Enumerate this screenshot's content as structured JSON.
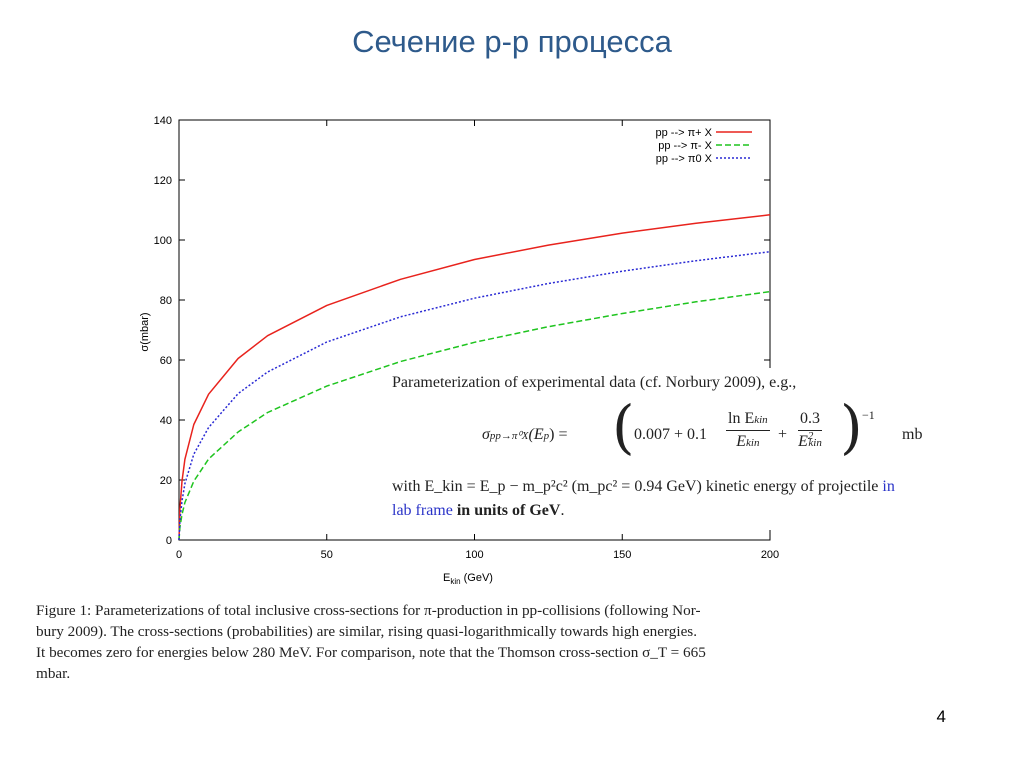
{
  "slide": {
    "title": "Сечение p-p процесса",
    "page_number": "4"
  },
  "chart_data": {
    "type": "line",
    "xlabel": "E",
    "xlabel_sub": "kin",
    "xlabel_unit": " (GeV)",
    "ylabel": "σ(mbar)",
    "xlim": [
      0,
      200
    ],
    "ylim": [
      0,
      140
    ],
    "x_ticks": [
      0,
      50,
      100,
      150,
      200
    ],
    "y_ticks": [
      0,
      20,
      40,
      60,
      80,
      100,
      120,
      140
    ],
    "legend_position": "top-right",
    "grid": false,
    "series": [
      {
        "name": "pp --> π+ X",
        "color": "#e8231d",
        "dash": "solid",
        "x": [
          0.3,
          1,
          2,
          5,
          10,
          20,
          30,
          50,
          75,
          100,
          125,
          150,
          175,
          200
        ],
        "y": [
          10.3,
          19.6,
          26.9,
          38.5,
          48.6,
          60.5,
          68.1,
          78.2,
          86.9,
          93.5,
          98.3,
          102.3,
          105.6,
          108.4
        ]
      },
      {
        "name": "pp --> π- X",
        "color": "#1fc41f",
        "dash": "dashed",
        "x": [
          0.3,
          1,
          2,
          5,
          10,
          20,
          30,
          50,
          75,
          100,
          125,
          150,
          175,
          200
        ],
        "y": [
          4.2,
          8.5,
          12.5,
          19.6,
          27.0,
          36.0,
          42.5,
          51.3,
          59.5,
          65.9,
          71.1,
          75.5,
          79.4,
          82.8
        ]
      },
      {
        "name": "pp --> π0 X",
        "color": "#2a2ad4",
        "dash": "dotted",
        "x": [
          0.3,
          1,
          2,
          5,
          10,
          20,
          30,
          50,
          75,
          100,
          125,
          150,
          175,
          200
        ],
        "y": [
          6.5,
          13.0,
          18.8,
          28.6,
          37.5,
          48.8,
          56.0,
          66.0,
          74.4,
          80.6,
          85.5,
          89.6,
          93.1,
          96.1
        ]
      }
    ]
  },
  "formula": {
    "line1": "Parameterization of experimental data (cf. Norbury 2009), e.g.,",
    "sigma": "σ",
    "sigma_sub": "pp→π⁰X",
    "lhs_arg": "(E",
    "lhs_arg_sub": "p",
    "lhs_close": ") =",
    "const1": "0.007 + 0.1",
    "frac1_num": "ln E",
    "frac1_num_sub": "kin",
    "frac1_den": "E",
    "frac1_den_sub": "kin",
    "plus": "+",
    "frac2_num": "0.3",
    "frac2_den": "E",
    "frac2_den_sup": "2",
    "frac2_den_sub": "kin",
    "exponent": "−1",
    "unit": "mb",
    "line3": "with E_kin = E_p − m_p²c² (m_pc² = 0.94 GeV) kinetic energy of projectile",
    "line3_in": "in",
    "line4_blue": "lab frame",
    "line4_bold": "in units of GeV",
    "line4_end": "."
  },
  "caption": {
    "line1": "Figure 1:  Parameterizations of total inclusive cross-sections for π-production in pp-collisions (following Nor-",
    "line2": "bury 2009).  The cross-sections (probabilities) are similar, rising quasi-logarithmically towards high energies.",
    "line3": "It becomes zero for energies below 280 MeV. For comparison, note that the Thomson cross-section σ_T = 665",
    "line4": "mbar."
  }
}
